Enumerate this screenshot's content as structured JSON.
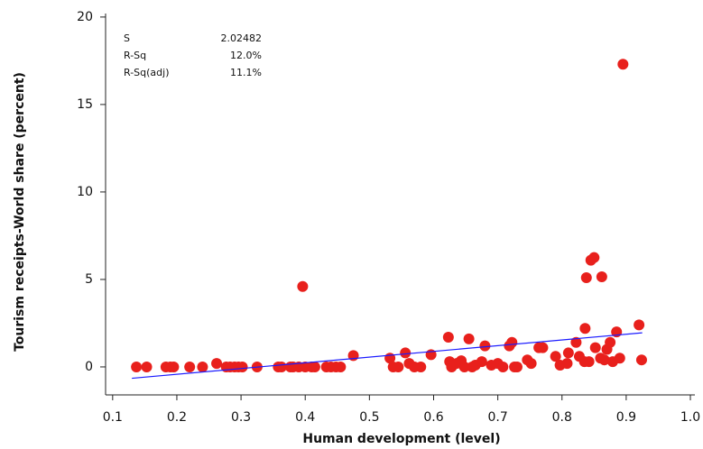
{
  "chart_data": {
    "type": "scatter",
    "x_label": "Human development (level)",
    "y_label": "Tourism receipts-World share (percent)",
    "xlim": [
      0.089,
      1.007
    ],
    "ylim": [
      -1.6,
      20.2
    ],
    "xticks": [
      0.1,
      0.2,
      0.3,
      0.4,
      0.5,
      0.6,
      0.7,
      0.8,
      0.9,
      {
        "value": 1,
        "label": "1.0"
      }
    ],
    "yticks": [
      0,
      5,
      10,
      15,
      20
    ],
    "color": "#e8201c",
    "x": [
      0.137,
      0.153,
      0.183,
      0.19,
      0.195,
      0.22,
      0.24,
      0.262,
      0.277,
      0.283,
      0.29,
      0.296,
      0.302,
      0.325,
      0.358,
      0.363,
      0.377,
      0.381,
      0.39,
      0.4,
      0.41,
      0.415,
      0.433,
      0.44,
      0.448,
      0.455,
      0.396,
      0.475,
      0.532,
      0.537,
      0.545,
      0.556,
      0.562,
      0.57,
      0.58,
      0.596,
      0.623,
      0.625,
      0.628,
      0.636,
      0.643,
      0.648,
      0.655,
      0.66,
      0.665,
      0.675,
      0.68,
      0.69,
      0.7,
      0.708,
      0.718,
      0.722,
      0.726,
      0.73,
      0.746,
      0.752,
      0.764,
      0.77,
      0.79,
      0.797,
      0.808,
      0.822,
      0.827,
      0.836,
      0.838,
      0.842,
      0.845,
      0.85,
      0.852,
      0.86,
      0.862,
      0.866,
      0.87,
      0.875,
      0.879,
      0.885,
      0.89,
      0.895,
      0.92,
      0.924,
      0.835,
      0.81
    ],
    "values": [
      0,
      0,
      0,
      0,
      0,
      0,
      0,
      0.2,
      0,
      0,
      0,
      0,
      0,
      0,
      0,
      0,
      0,
      0,
      0,
      0,
      0,
      0,
      0,
      0,
      0,
      0,
      4.6,
      0.65,
      0.5,
      0,
      0,
      0.8,
      0.2,
      0,
      0,
      0.7,
      1.7,
      0.3,
      0,
      0.2,
      0.35,
      0,
      1.6,
      0,
      0.1,
      0.3,
      1.2,
      0.1,
      0.2,
      0,
      1.2,
      1.4,
      0,
      0,
      0.4,
      0.2,
      1.1,
      1.1,
      0.6,
      0.1,
      0.2,
      1.4,
      0.6,
      2.2,
      5.1,
      0.3,
      6.1,
      6.25,
      1.1,
      0.5,
      5.15,
      0.4,
      1.0,
      1.4,
      0.3,
      2.0,
      0.5,
      17.3,
      2.4,
      0.4,
      0.3,
      0.8
    ],
    "fit_line": {
      "color": "#1a1aff",
      "x": [
        0.13,
        0.925
      ],
      "y": [
        -0.65,
        1.95
      ]
    },
    "stats": [
      [
        "S",
        "2.02482"
      ],
      [
        "R-Sq",
        "12.0%"
      ],
      [
        "R-Sq(adj)",
        "11.1%"
      ]
    ]
  }
}
